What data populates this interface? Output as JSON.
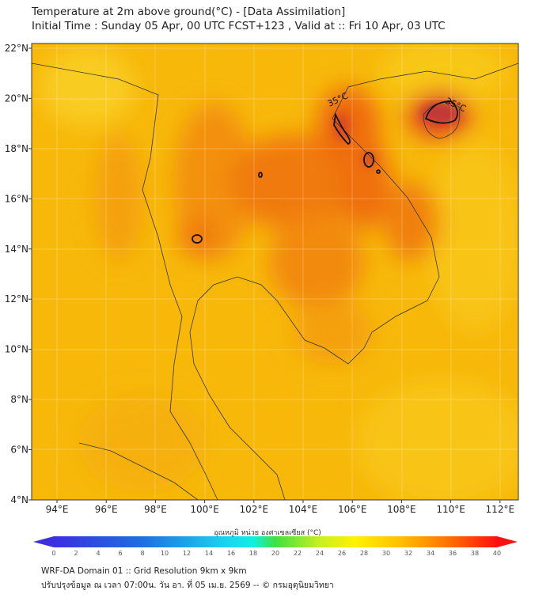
{
  "header": {
    "title": "Temperature at 2m above ground(°C) - [Data Assimilation]",
    "subtitle": "Initial Time : Sunday 05 Apr, 00 UTC FCST+123 , Valid at :: Fri 10 Apr, 03 UTC"
  },
  "map": {
    "lon_ticks": [
      "94°E",
      "96°E",
      "98°E",
      "100°E",
      "102°E",
      "104°E",
      "106°E",
      "108°E",
      "110°E",
      "112°E"
    ],
    "lon_values": [
      94,
      96,
      98,
      100,
      102,
      104,
      106,
      108,
      110,
      112
    ],
    "lat_ticks": [
      "22°N",
      "20°N",
      "18°N",
      "16°N",
      "14°N",
      "12°N",
      "10°N",
      "8°N",
      "6°N",
      "4°N"
    ],
    "lat_values": [
      22,
      20,
      18,
      16,
      14,
      12,
      10,
      8,
      6,
      4
    ],
    "contour_labels": [
      "35°C",
      "35°C"
    ]
  },
  "colorbar": {
    "label": "อุณหภูมิ หน่วย องศาเซลเซียส (°C)",
    "ticks": [
      "0",
      "2",
      "4",
      "6",
      "8",
      "10",
      "12",
      "14",
      "16",
      "18",
      "20",
      "22",
      "24",
      "26",
      "28",
      "30",
      "32",
      "34",
      "36",
      "38",
      "40"
    ],
    "min": 0,
    "max": 40
  },
  "footer": {
    "line1": "WRF-DA Domain 01 :: Grid Resolution 9km x 9km",
    "line2": "ปรับปรุงข้อมูล ณ เวลา 07:00น. วัน อา. ที่ 05 เม.ย. 2569 -- © กรมอุตุนิยมวิทยา"
  }
}
